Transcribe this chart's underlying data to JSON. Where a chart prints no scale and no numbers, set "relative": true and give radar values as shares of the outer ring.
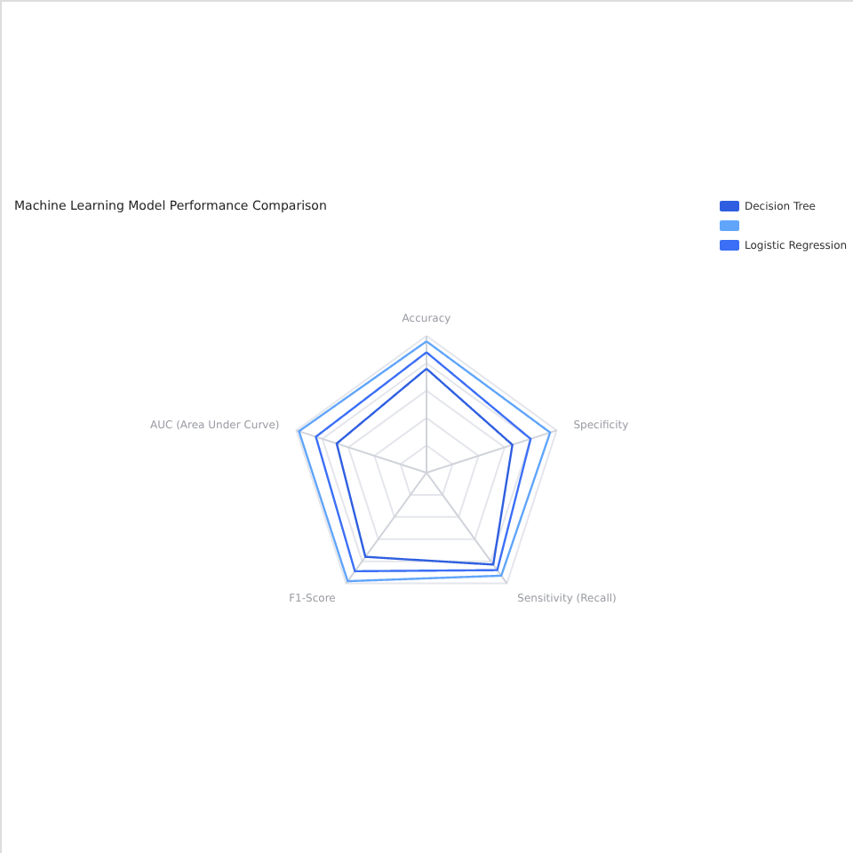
{
  "chart_data": {
    "type": "radar",
    "title": "Machine Learning Model Performance Comparison",
    "relative": true,
    "categories": [
      "Accuracy",
      "Specificity",
      "Sensitivity (Recall)",
      "F1-Score",
      "AUC (Area Under Curve)"
    ],
    "series": [
      {
        "name": "Decision Tree",
        "color": "#2f5fe0",
        "values": [
          0.76,
          0.66,
          0.83,
          0.76,
          0.69
        ]
      },
      {
        "color": "#60a5fa",
        "values": [
          0.96,
          0.95,
          0.93,
          0.98,
          0.98
        ]
      },
      {
        "name": "Logistic Regression",
        "color": "#3b6ff5",
        "values": [
          0.88,
          0.8,
          0.88,
          0.89,
          0.85
        ]
      }
    ],
    "grid": true,
    "legend": "top right",
    "marker": "none",
    "line_style": "solid"
  }
}
